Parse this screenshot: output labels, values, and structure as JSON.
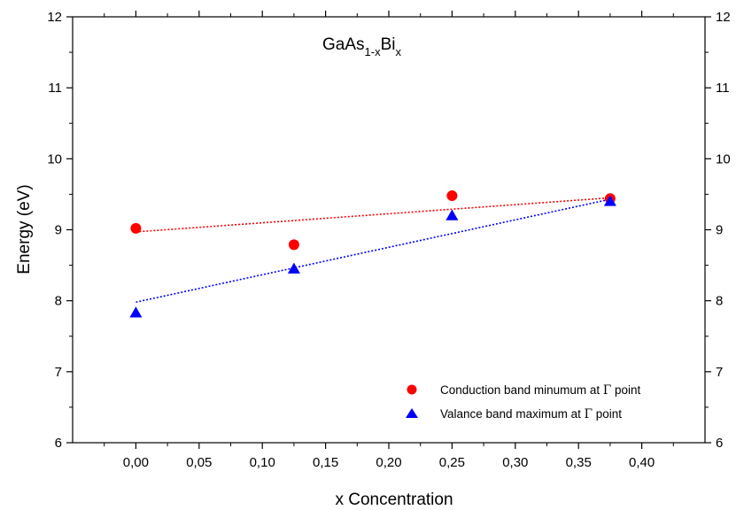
{
  "chart_data": {
    "type": "scatter",
    "title": {
      "base": "GaAs",
      "sub1": "1-x",
      "mid": "Bi",
      "sub2": "x"
    },
    "xlabel": "x Concentration",
    "ylabel": "Energy (eV)",
    "xlim": [
      -0.05,
      0.45
    ],
    "ylim": [
      6,
      12
    ],
    "x_ticks": [
      "0,00",
      "0,05",
      "0,10",
      "0,15",
      "0,20",
      "0,25",
      "0,30",
      "0,35",
      "0,40"
    ],
    "x_tick_values": [
      0.0,
      0.05,
      0.1,
      0.15,
      0.2,
      0.25,
      0.3,
      0.35,
      0.4
    ],
    "y_ticks": [
      "6",
      "7",
      "8",
      "9",
      "10",
      "11",
      "12"
    ],
    "y_tick_values": [
      6,
      7,
      8,
      9,
      10,
      11,
      12
    ],
    "grid": false,
    "legend_position": "bottom-right",
    "series": [
      {
        "name": "Conduction band minumum at Γ point",
        "legend_prefix": "Conduction band minumum at ",
        "legend_symbol": "Γ",
        "legend_suffix": " point",
        "marker": "circle",
        "color": "#ff0000",
        "x": [
          0.0,
          0.125,
          0.25,
          0.375
        ],
        "y": [
          9.02,
          8.79,
          9.48,
          9.44
        ],
        "fit": {
          "x": [
            0.0,
            0.375
          ],
          "y": [
            8.97,
            9.45
          ]
        }
      },
      {
        "name": "Valance band maximum at Γ point",
        "legend_prefix": "Valance band maximum at ",
        "legend_symbol": "Γ",
        "legend_suffix": " point",
        "marker": "triangle",
        "color": "#0000ff",
        "x": [
          0.0,
          0.125,
          0.25,
          0.375
        ],
        "y": [
          7.83,
          8.45,
          9.2,
          9.4
        ],
        "fit": {
          "x": [
            0.0,
            0.375
          ],
          "y": [
            7.98,
            9.43
          ]
        }
      }
    ]
  }
}
